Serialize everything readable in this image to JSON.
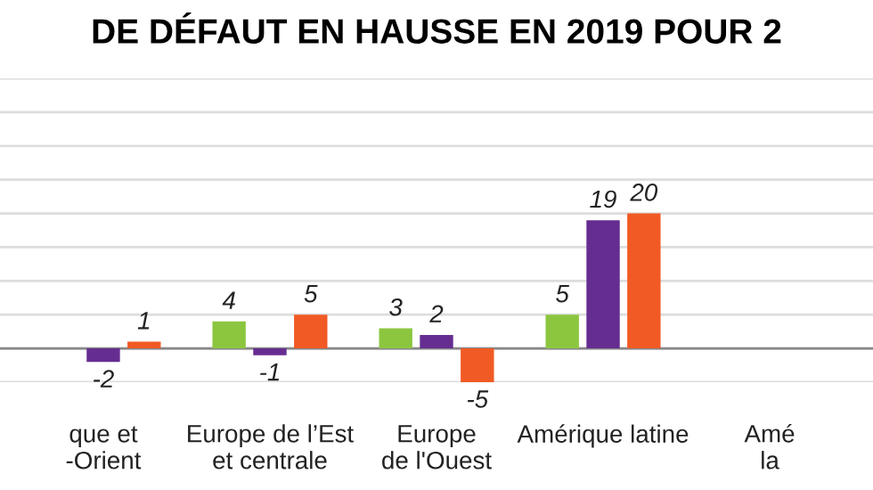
{
  "chart_data": {
    "type": "bar",
    "title": "DE DÉFAUT EN HAUSSE EN 2019 POUR 2",
    "categories": [
      "que et\n-Orient",
      "Europe de l’Est\net centrale",
      "Europe\nde l'Ouest",
      "Amérique latine",
      "Amé\nla"
    ],
    "series": [
      {
        "color": "#8cc63f",
        "values": [
          null,
          4,
          3,
          5,
          null
        ]
      },
      {
        "color": "#662d91",
        "values": [
          -2,
          -1,
          2,
          19,
          null
        ]
      },
      {
        "color": "#f15a24",
        "values": [
          1,
          5,
          -5,
          20,
          null
        ]
      }
    ],
    "ylim": [
      -5,
      40
    ],
    "yticks": [
      {
        "value": -5,
        "label": null
      },
      {
        "value": 0,
        "label": null
      },
      {
        "value": 5,
        "label": null
      },
      {
        "value": 10,
        "label": null
      },
      {
        "value": 15,
        "label": null
      },
      {
        "value": 20,
        "label": null
      },
      {
        "value": 25,
        "label": null
      },
      {
        "value": 30,
        "label": null
      },
      {
        "value": 35,
        "label": null
      },
      {
        "value": 40,
        "label": null
      }
    ],
    "grid": "y",
    "data_labels": true,
    "tick_labels": "x",
    "legend": false
  }
}
